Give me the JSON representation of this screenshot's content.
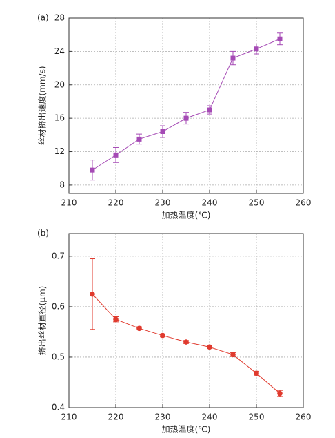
{
  "chart_data": [
    {
      "type": "line",
      "panel": "(a)",
      "xlabel": "加热温度(℃)",
      "ylabel": "丝材挤出速度(mm/s)",
      "x": [
        215,
        220,
        225,
        230,
        235,
        240,
        245,
        250,
        255
      ],
      "series": [
        {
          "color": "#a54ab5",
          "marker": "square",
          "values": [
            9.8,
            11.6,
            13.5,
            14.4,
            16.0,
            17.0,
            23.2,
            24.3,
            25.5
          ],
          "errors": [
            1.2,
            0.9,
            0.6,
            0.7,
            0.7,
            0.5,
            0.8,
            0.6,
            0.7
          ]
        }
      ],
      "xlim": [
        210,
        260
      ],
      "xticks": [
        210,
        220,
        230,
        240,
        250,
        260
      ],
      "ylim": [
        7,
        28
      ],
      "yticks": [
        8,
        12,
        16,
        20,
        24,
        28
      ],
      "grid": true
    },
    {
      "type": "line",
      "panel": "(b)",
      "xlabel": "加热温度(℃)",
      "ylabel": "挤出丝材直径(μm)",
      "x": [
        215,
        220,
        225,
        230,
        235,
        240,
        245,
        250,
        255
      ],
      "series": [
        {
          "color": "#e03a2e",
          "marker": "circle",
          "values": [
            0.625,
            0.575,
            0.557,
            0.543,
            0.53,
            0.52,
            0.505,
            0.468,
            0.428
          ],
          "errors": [
            0.07,
            0.005,
            0.003,
            0.003,
            0.003,
            0.003,
            0.004,
            0.004,
            0.006
          ]
        }
      ],
      "xlim": [
        210,
        260
      ],
      "xticks": [
        210,
        220,
        230,
        240,
        250,
        260
      ],
      "ylim": [
        0.4,
        0.745
      ],
      "yticks": [
        0.4,
        0.5,
        0.6,
        0.7
      ],
      "grid": true
    }
  ]
}
